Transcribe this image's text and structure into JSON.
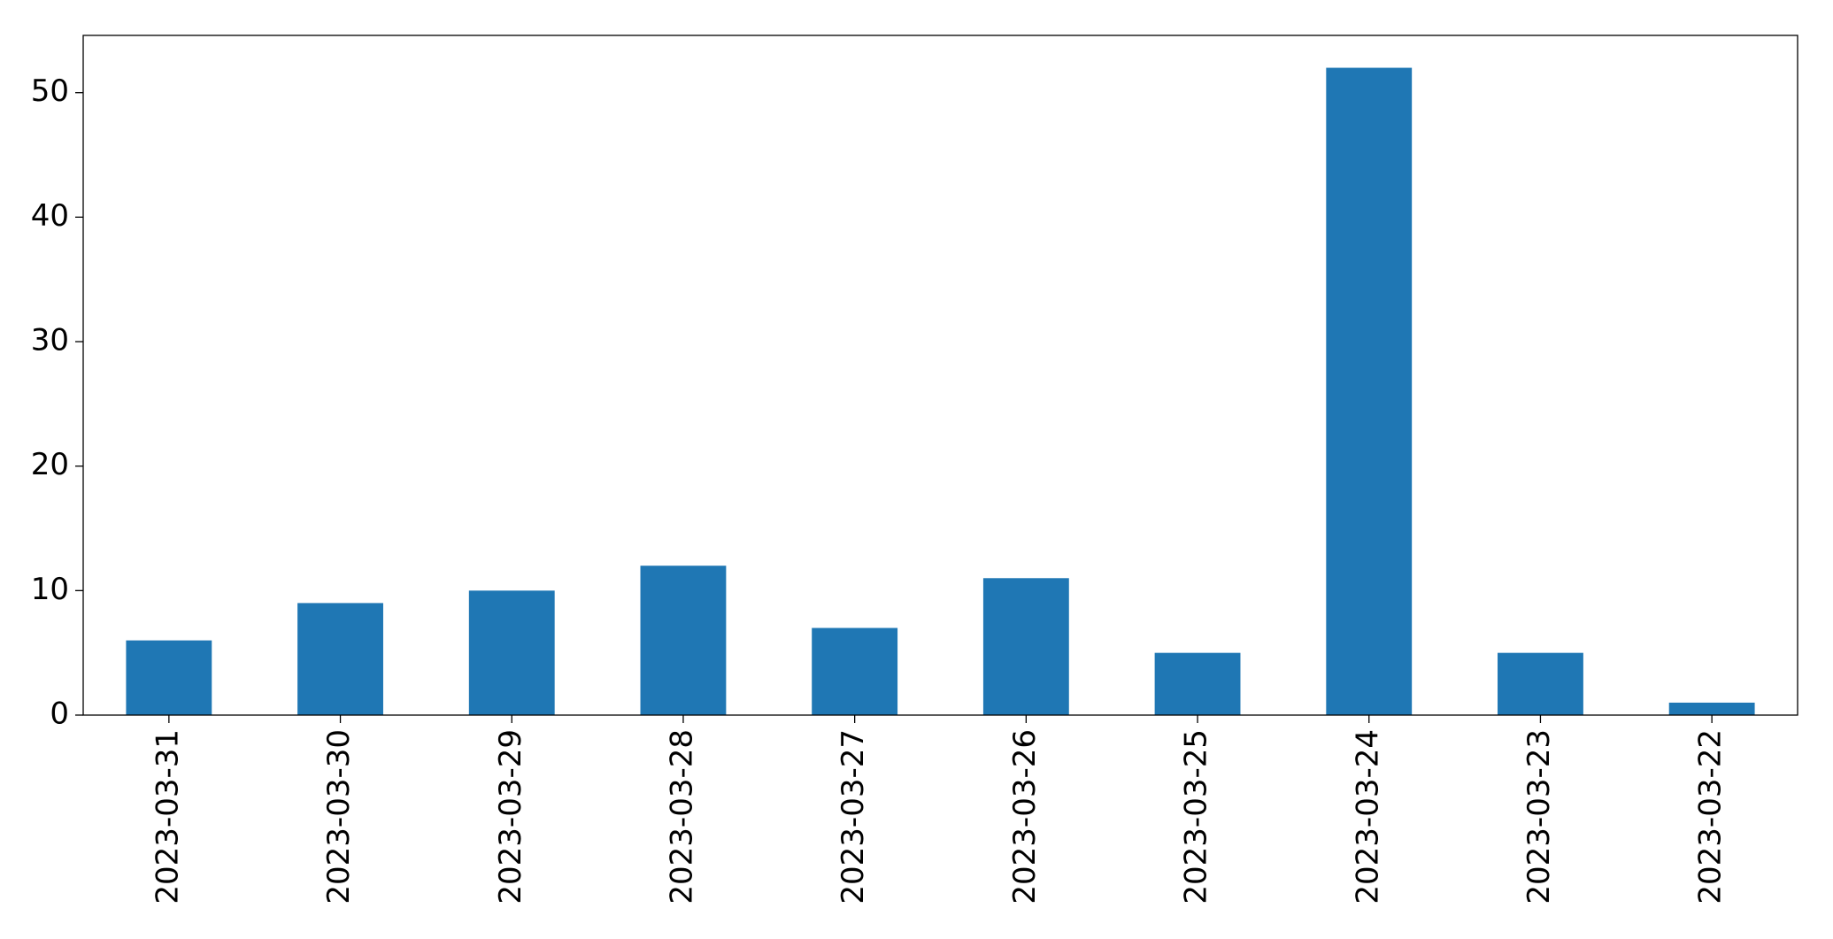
{
  "chart_data": {
    "type": "bar",
    "categories": [
      "2023-03-31",
      "2023-03-30",
      "2023-03-29",
      "2023-03-28",
      "2023-03-27",
      "2023-03-26",
      "2023-03-25",
      "2023-03-24",
      "2023-03-23",
      "2023-03-22"
    ],
    "values": [
      6,
      9,
      10,
      12,
      7,
      11,
      5,
      52,
      5,
      1
    ],
    "color": "#1f77b4",
    "ylim": [
      0,
      54.6
    ],
    "yticks": [
      0,
      10,
      20,
      30,
      40,
      50
    ],
    "grid": false
  }
}
